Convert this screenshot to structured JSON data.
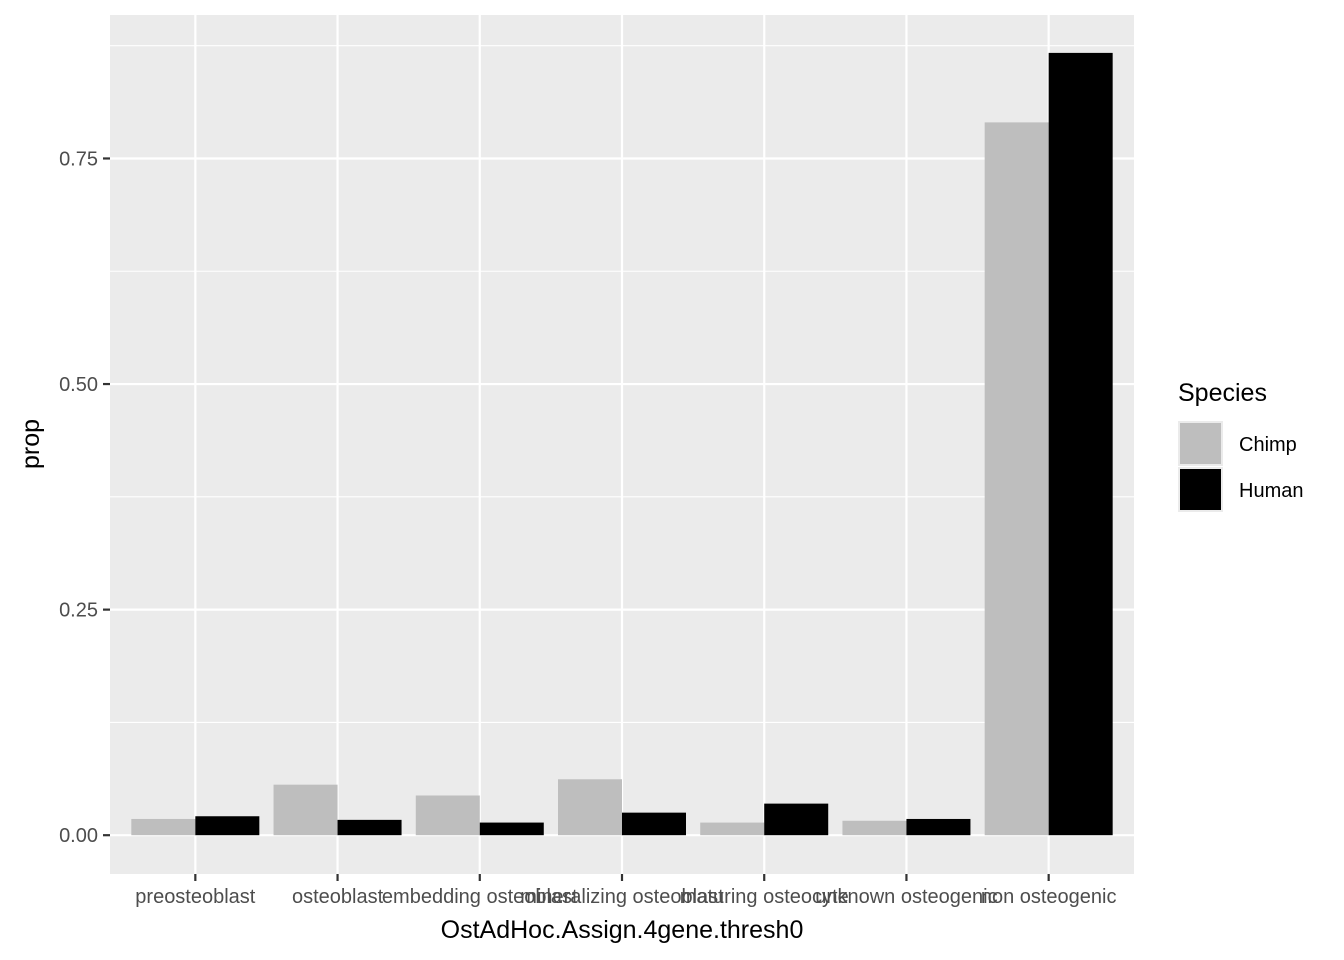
{
  "chart_data": {
    "type": "bar",
    "xlabel": "OstAdHoc.Assign.4gene.thresh0",
    "ylabel": "prop",
    "categories": [
      "preosteoblast",
      "osteoblast",
      "embedding osteoblast",
      "mineralizing osteoblast",
      "maturing osteocyte",
      "unknown osteogenic",
      "non osteogenic"
    ],
    "series": [
      {
        "name": "Chimp",
        "color": "#bebebe",
        "values": [
          0.018,
          0.056,
          0.044,
          0.062,
          0.014,
          0.016,
          0.79
        ]
      },
      {
        "name": "Human",
        "color": "#000000",
        "values": [
          0.021,
          0.017,
          0.014,
          0.025,
          0.035,
          0.018,
          0.867
        ]
      }
    ],
    "ylim": [
      -0.043,
      0.909
    ],
    "yticks": [
      0.0,
      0.25,
      0.5,
      0.75
    ],
    "ytick_labels": [
      "0.00",
      "0.25",
      "0.50",
      "0.75"
    ],
    "legend": {
      "title": "Species",
      "position": "right"
    },
    "grid": true,
    "panel_background": "#ebebeb",
    "grid_color": "#ffffff"
  }
}
